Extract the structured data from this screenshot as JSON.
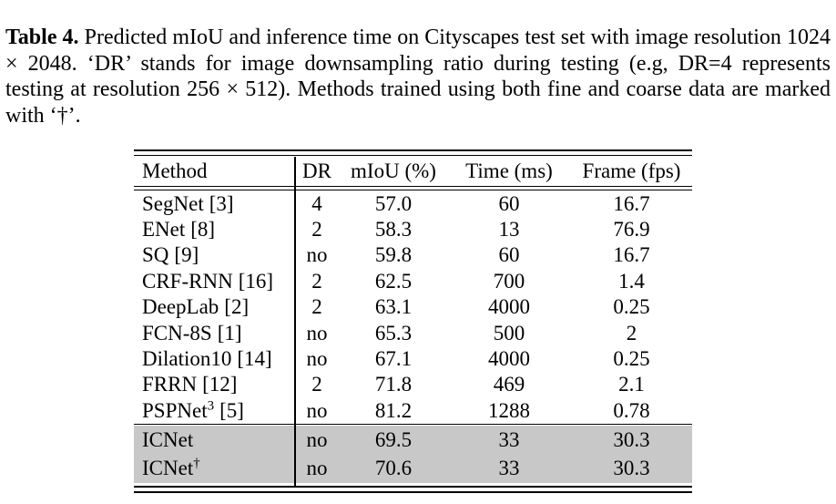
{
  "caption": {
    "label": "Table 4.",
    "text": "Predicted mIoU and inference time on Cityscapes test set with image resolution 1024 × 2048. ‘DR’ stands for image downsampling ratio during testing (e.g, DR=4 represents testing at resolution 256 × 512). Methods trained using both fine and coarse data are marked with ‘†’."
  },
  "table": {
    "headers": {
      "method": "Method",
      "dr": "DR",
      "miou": "mIoU (%)",
      "time": "Time (ms)",
      "fps": "Frame (fps)"
    },
    "rows": [
      {
        "method": "SegNet",
        "sup": "",
        "ref": "[3]",
        "dr": "4",
        "miou": "57.0",
        "time": "60",
        "fps": "16.7"
      },
      {
        "method": "ENet",
        "sup": "",
        "ref": "[8]",
        "dr": "2",
        "miou": "58.3",
        "time": "13",
        "fps": "76.9"
      },
      {
        "method": "SQ",
        "sup": "",
        "ref": "[9]",
        "dr": "no",
        "miou": "59.8",
        "time": "60",
        "fps": "16.7"
      },
      {
        "method": "CRF-RNN",
        "sup": "",
        "ref": "[16]",
        "dr": "2",
        "miou": "62.5",
        "time": "700",
        "fps": "1.4"
      },
      {
        "method": "DeepLab",
        "sup": "",
        "ref": "[2]",
        "dr": "2",
        "miou": "63.1",
        "time": "4000",
        "fps": "0.25"
      },
      {
        "method": "FCN-8S",
        "sup": "",
        "ref": "[1]",
        "dr": "no",
        "miou": "65.3",
        "time": "500",
        "fps": "2"
      },
      {
        "method": "Dilation10",
        "sup": "",
        "ref": "[14]",
        "dr": "no",
        "miou": "67.1",
        "time": "4000",
        "fps": "0.25"
      },
      {
        "method": "FRRN",
        "sup": "",
        "ref": "[12]",
        "dr": "2",
        "miou": "71.8",
        "time": "469",
        "fps": "2.1"
      },
      {
        "method": "PSPNet",
        "sup": "3",
        "ref": "[5]",
        "dr": "no",
        "miou": "81.2",
        "time": "1288",
        "fps": "0.78"
      }
    ],
    "highlight_rows": [
      {
        "method": "ICNet",
        "sup": "",
        "ref": "",
        "dr": "no",
        "miou": "69.5",
        "time": "33",
        "fps": "30.3"
      },
      {
        "method": "ICNet",
        "sup": "†",
        "ref": "",
        "dr": "no",
        "miou": "70.6",
        "time": "33",
        "fps": "30.3"
      }
    ]
  },
  "colors": {
    "highlight_row_bg": "#c8c8c8",
    "text": "#000000",
    "rule": "#000000"
  }
}
